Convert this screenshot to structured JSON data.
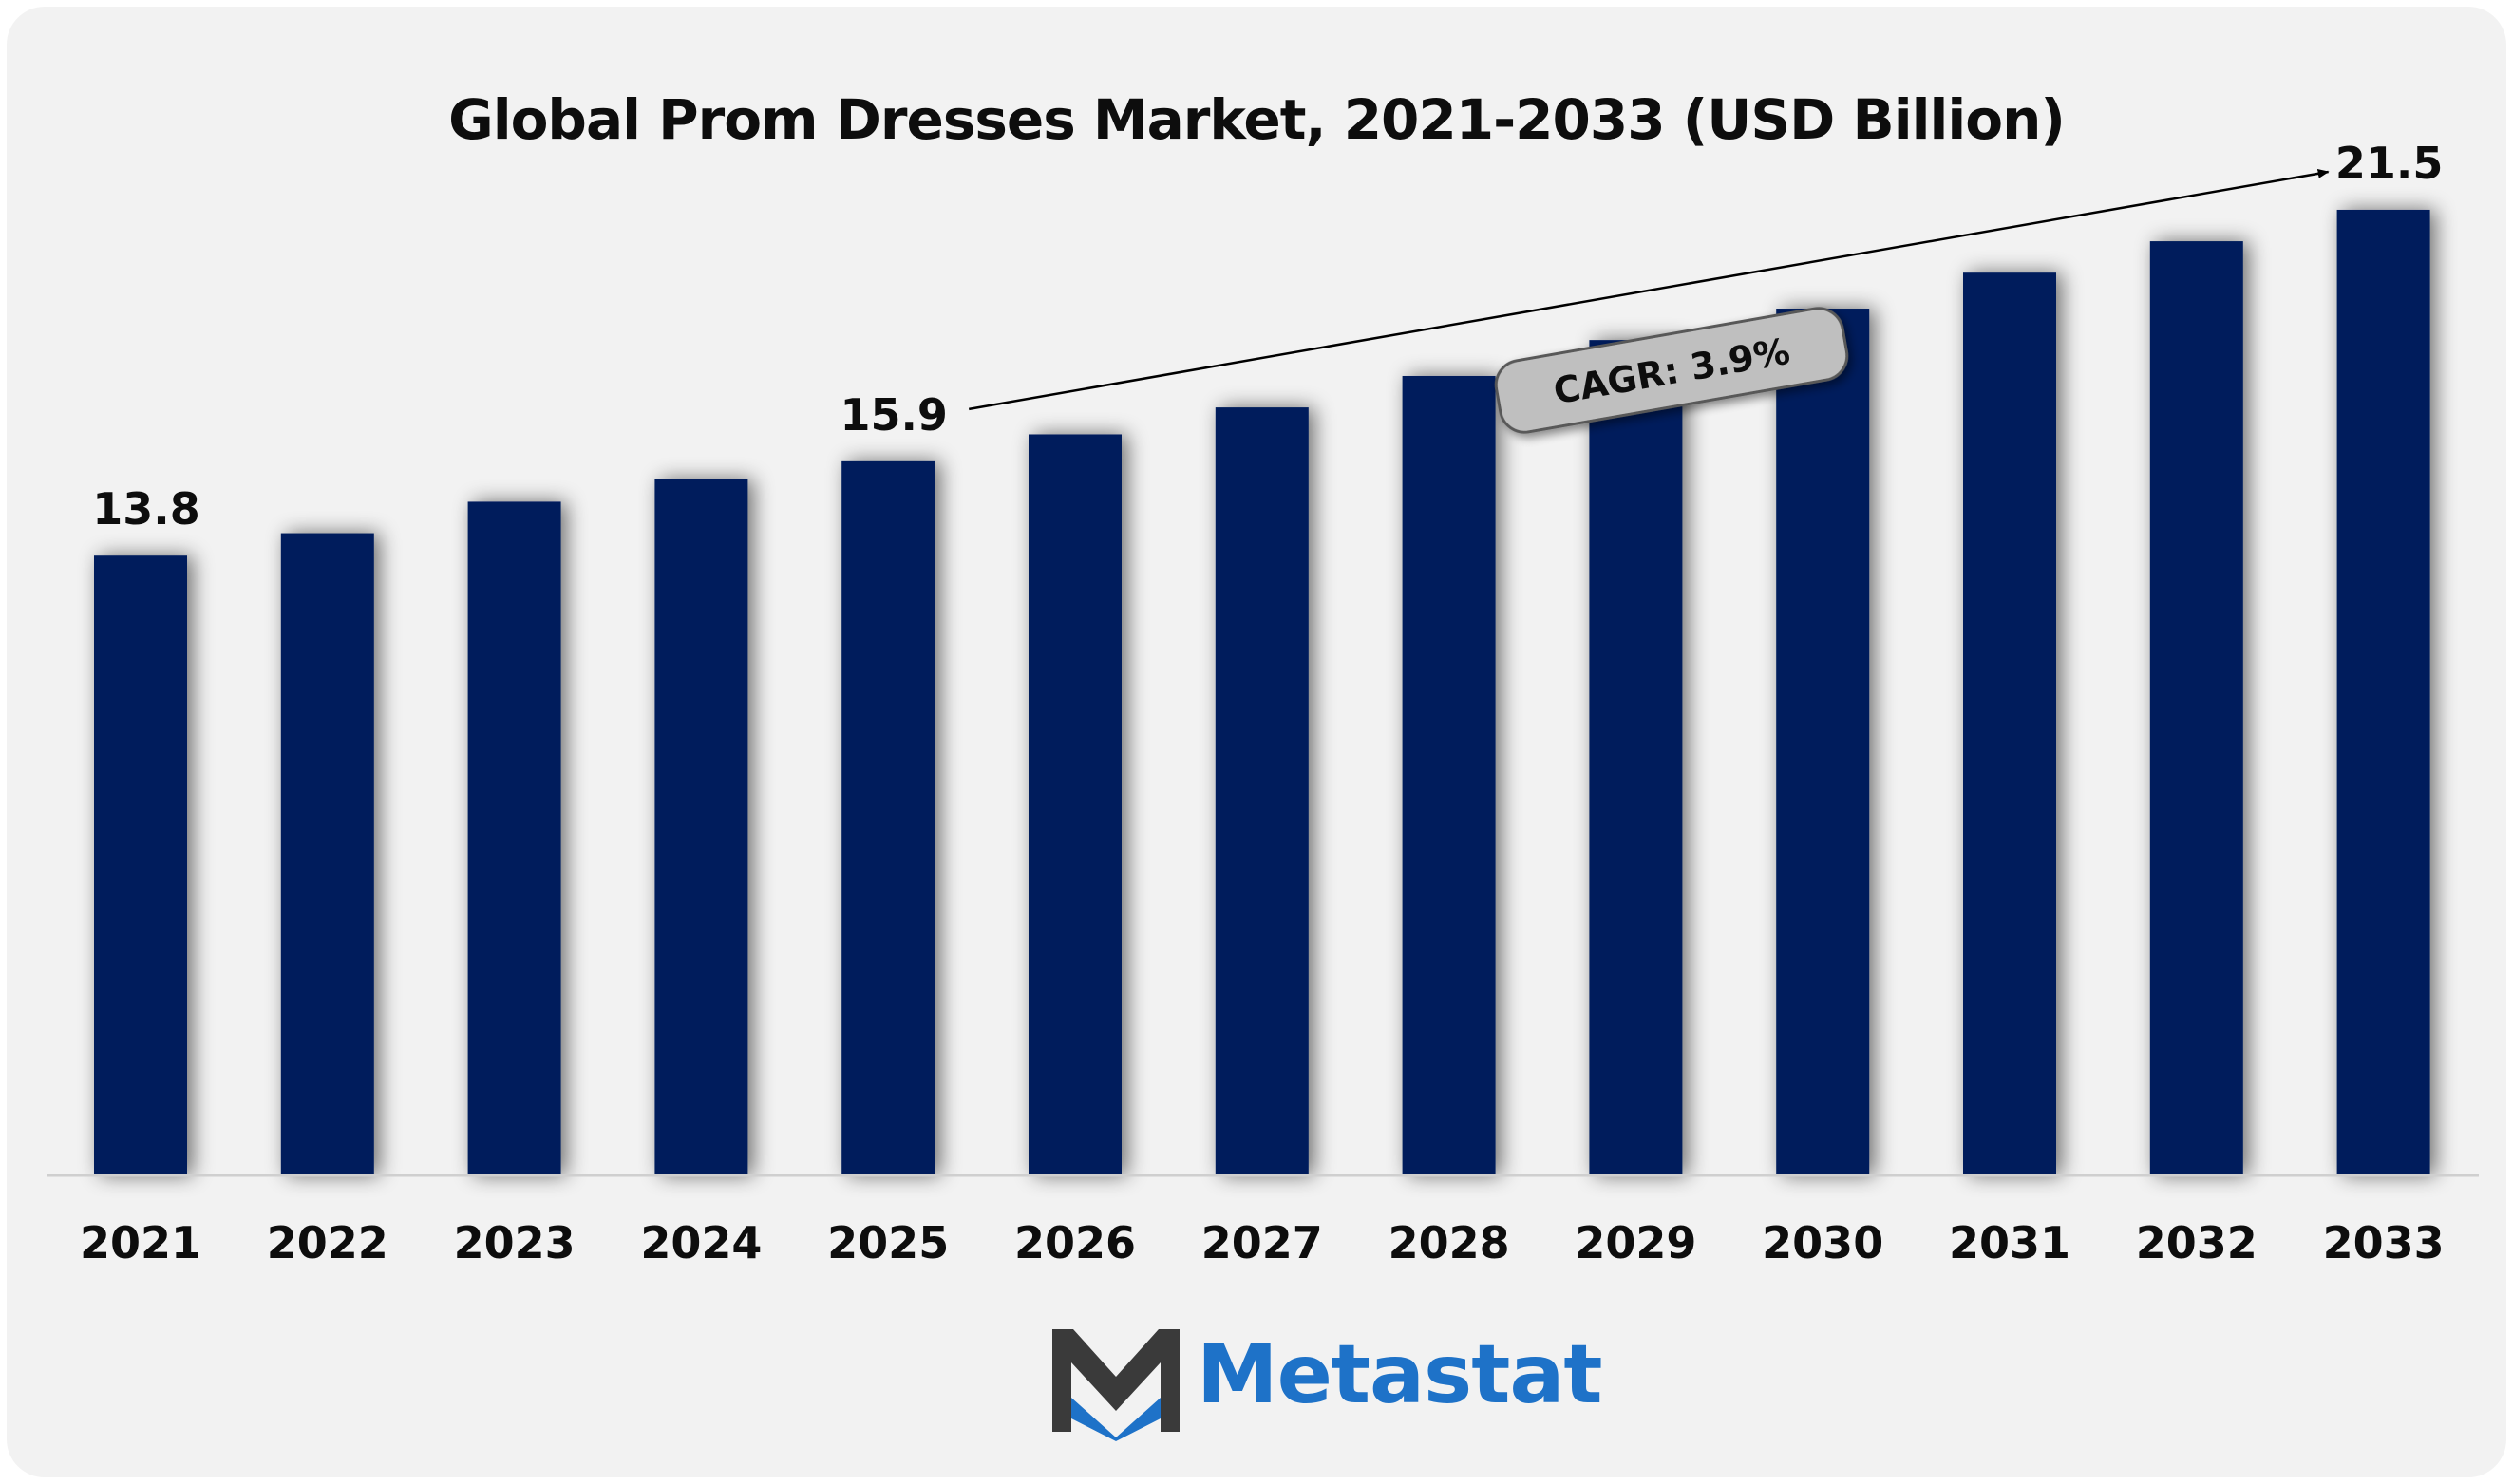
{
  "chart_data": {
    "type": "bar",
    "title": "Global Prom Dresses Market, 2021-2033 (USD Billion)",
    "categories": [
      "2021",
      "2022",
      "2023",
      "2024",
      "2025",
      "2026",
      "2027",
      "2028",
      "2029",
      "2030",
      "2031",
      "2032",
      "2033"
    ],
    "values": [
      13.8,
      14.3,
      15.0,
      15.5,
      15.9,
      16.5,
      17.1,
      17.8,
      18.6,
      19.3,
      20.1,
      20.8,
      21.5
    ],
    "data_labels": [
      {
        "index": 0,
        "text": "13.8"
      },
      {
        "index": 4,
        "text": "15.9"
      },
      {
        "index": 12,
        "text": "21.5"
      }
    ],
    "annotation": "CAGR: 3.9%",
    "bar_color": "#021f5c",
    "ylim": [
      0,
      23
    ],
    "grid": false,
    "legend": "none"
  },
  "branding": {
    "name": "Metastat",
    "accent": "#1e72c8",
    "mark_color": "#3a3a3a"
  }
}
